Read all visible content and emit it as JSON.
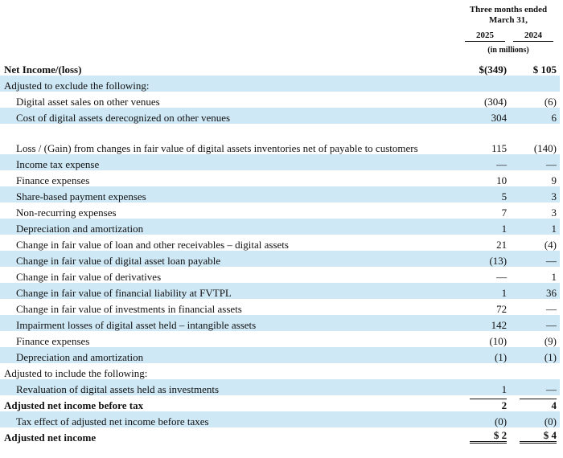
{
  "header": {
    "title_line1": "Three months ended",
    "title_line2": "March 31,",
    "years": [
      "2025",
      "2024"
    ],
    "unit": "(in millions)"
  },
  "table": {
    "rows": [
      {
        "label": "Net Income/(loss)",
        "style": "total",
        "values": [
          "$(349)",
          "$ 105"
        ]
      },
      {
        "label": "Adjusted to exclude the following:",
        "style": "section",
        "values": [
          "",
          ""
        ]
      },
      {
        "label": "Digital asset sales on other venues",
        "style": "item",
        "values": [
          "(304)",
          "(6)"
        ]
      },
      {
        "label": "Cost of digital assets derecognized on other venues",
        "style": "item",
        "values": [
          "304",
          "6"
        ]
      },
      {
        "label": "Loss / (Gain) from changes in fair value of digital assets inventories net of payable to customers",
        "style": "item tall",
        "values": [
          "115",
          "(140)"
        ]
      },
      {
        "label": "Income tax expense",
        "style": "item",
        "values": [
          "—",
          "—"
        ]
      },
      {
        "label": "Finance expenses",
        "style": "item",
        "values": [
          "10",
          "9"
        ]
      },
      {
        "label": "Share-based payment expenses",
        "style": "item",
        "values": [
          "5",
          "3"
        ]
      },
      {
        "label": "Non-recurring expenses",
        "style": "item",
        "values": [
          "7",
          "3"
        ]
      },
      {
        "label": "Depreciation and amortization",
        "style": "item",
        "values": [
          "1",
          "1"
        ]
      },
      {
        "label": "Change in fair value of loan and other receivables – digital assets",
        "style": "item",
        "values": [
          "21",
          "(4)"
        ]
      },
      {
        "label": "Change in fair value of digital asset loan payable",
        "style": "item",
        "values": [
          "(13)",
          "—"
        ]
      },
      {
        "label": "Change in fair value of derivatives",
        "style": "item",
        "values": [
          "—",
          "1"
        ]
      },
      {
        "label": "Change in fair value of financial liability at FVTPL",
        "style": "item",
        "values": [
          "1",
          "36"
        ]
      },
      {
        "label": "Change in fair value of investments in financial assets",
        "style": "item",
        "values": [
          "72",
          "—"
        ]
      },
      {
        "label": "Impairment losses of digital asset held – intangible assets",
        "style": "item",
        "values": [
          "142",
          "—"
        ]
      },
      {
        "label": "Finance expenses",
        "style": "item",
        "values": [
          "(10)",
          "(9)"
        ]
      },
      {
        "label": "Depreciation and amortization",
        "style": "item",
        "values": [
          "(1)",
          "(1)"
        ]
      },
      {
        "label": "Adjusted to include the following:",
        "style": "section",
        "values": [
          "",
          ""
        ]
      },
      {
        "label": "Revaluation of digital assets held as investments",
        "style": "item",
        "values": [
          "1",
          "—"
        ]
      },
      {
        "label": "Adjusted net income before tax",
        "style": "total subtotal",
        "values": [
          "2",
          "4"
        ]
      },
      {
        "label": "Tax effect of adjusted net income before taxes",
        "style": "item",
        "values": [
          "(0)",
          "(0)"
        ]
      },
      {
        "label": "Adjusted net income",
        "style": "total grand",
        "values": [
          "$ 2",
          "$ 4"
        ]
      }
    ]
  }
}
